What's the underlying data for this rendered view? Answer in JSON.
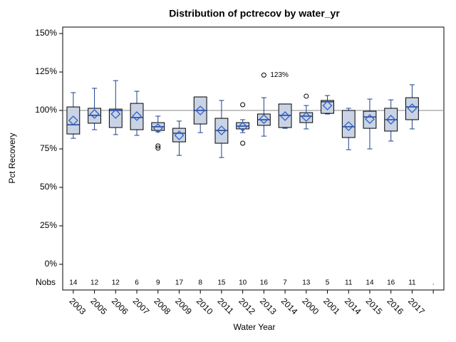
{
  "chart_data": {
    "type": "box",
    "title": "Distribution of pctrecov by water_yr",
    "x_label": "Water Year",
    "y_label": "Pct Recovery",
    "categories": [
      "2003",
      "2005",
      "2006",
      "2007",
      "2008",
      "2009",
      "2010",
      "2011",
      "2012",
      "2013",
      "2014",
      "2000",
      "2001",
      "2014",
      "2015",
      "2016",
      "2017",
      null
    ],
    "whisker_low": [
      81.9,
      87.5,
      84.3,
      83.8,
      86.1,
      70.8,
      85.6,
      69.4,
      85.6,
      83.3,
      88.4,
      88,
      97.7,
      74.5,
      75,
      80.1,
      88,
      null
    ],
    "q1": [
      84.7,
      91.7,
      88.9,
      87.5,
      87,
      79.6,
      91.2,
      78.7,
      88,
      90.3,
      88.9,
      92.1,
      98.1,
      82.4,
      88.4,
      86.6,
      94,
      null
    ],
    "median": [
      90.7,
      96.8,
      100,
      95.4,
      89.4,
      85.2,
      100,
      87,
      89.8,
      94,
      96.8,
      96.3,
      105.6,
      89.4,
      95.8,
      94,
      102.3,
      null
    ],
    "q3": [
      102.3,
      101.4,
      100.9,
      104.6,
      92.1,
      88.4,
      108.8,
      94.9,
      92.1,
      97.7,
      104.2,
      98.6,
      106.5,
      100,
      99.5,
      101.4,
      108.3,
      null
    ],
    "whisker_high": [
      111.6,
      114.4,
      119.4,
      112.5,
      96.3,
      93.1,
      108.8,
      106.5,
      94,
      108.3,
      104.2,
      103.2,
      109.7,
      101.4,
      107.4,
      106.9,
      116.7,
      null
    ],
    "mean": [
      93.5,
      97.7,
      97.7,
      96.3,
      88.4,
      83.8,
      100,
      87,
      89.4,
      94.4,
      96.3,
      95.8,
      103.2,
      89.8,
      94.4,
      94,
      101.4,
      null
    ],
    "outliers": [
      [],
      [],
      [],
      [],
      [
        76.9,
        75.5
      ],
      [],
      [],
      [],
      [
        103.7,
        78.7
      ],
      [
        {
          "value": 123,
          "label": "123%"
        }
      ],
      [],
      [
        109.3
      ],
      [],
      [],
      [],
      [],
      [],
      []
    ],
    "nobs_label": "Nobs",
    "nobs": [
      14,
      12,
      12,
      6,
      9,
      17,
      8,
      15,
      10,
      16,
      7,
      13,
      5,
      11,
      14,
      16,
      11,
      "."
    ],
    "reference_line": 100,
    "box_color": "#c9d3e3",
    "line_color": "#1f3f8f",
    "mean_color": "#2f62c9",
    "ylim": [
      -16.7,
      154.2
    ],
    "yticks": [
      {
        "value": 0,
        "label": "0%"
      },
      {
        "value": 25,
        "label": "25%"
      },
      {
        "value": 50,
        "label": "50%"
      },
      {
        "value": 75,
        "label": "75%"
      },
      {
        "value": 100,
        "label": "100%"
      },
      {
        "value": 125,
        "label": "125%"
      },
      {
        "value": 150,
        "label": "150%"
      }
    ]
  }
}
